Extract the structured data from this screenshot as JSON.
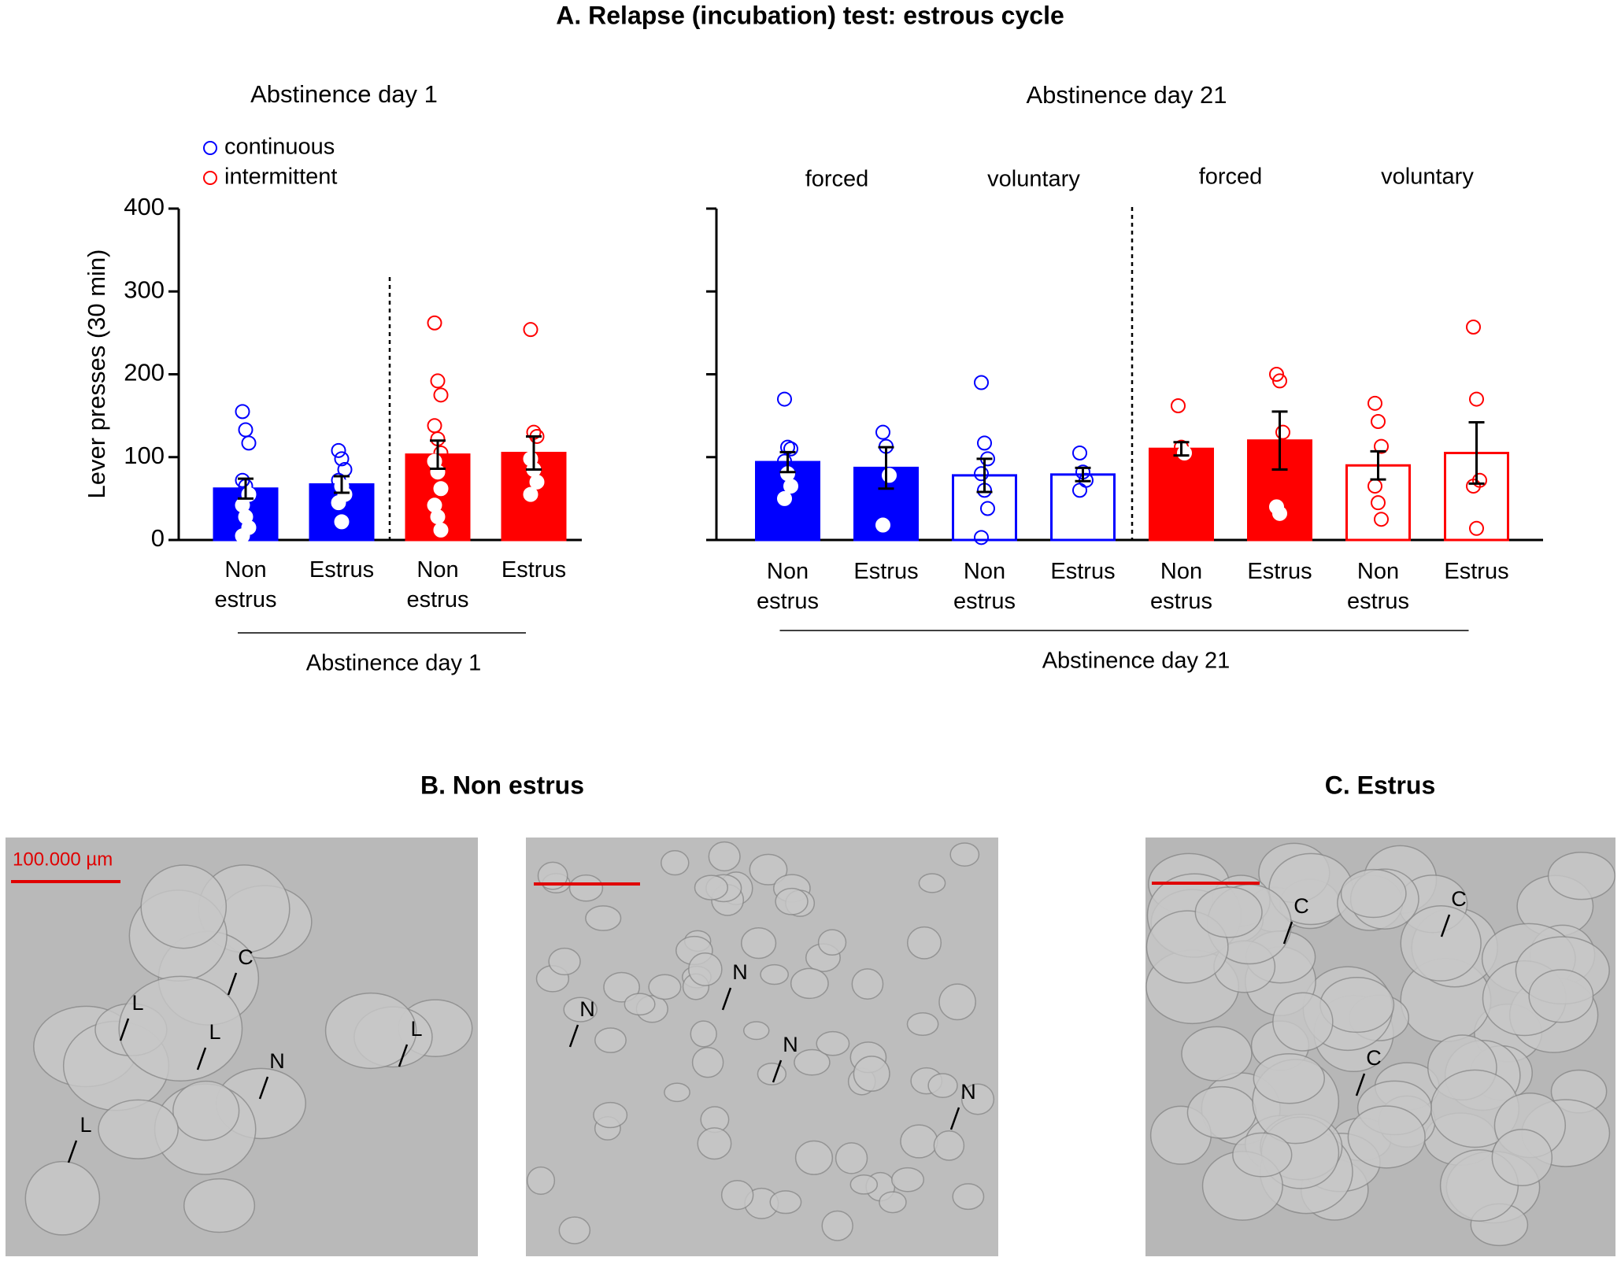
{
  "title": "A. Relapse (incubation) test: estrous cycle",
  "chart_data": [
    {
      "type": "bar",
      "title": "Abstinence day 1",
      "ylabel": "Lever presses (30 min)",
      "xlabel": "Abstinence day 1",
      "legend": [
        {
          "name": "continuous",
          "color": "#0000ff"
        },
        {
          "name": "intermittent",
          "color": "#ff0000"
        }
      ],
      "categories": [
        "Non estrus",
        "Estrus",
        "Non estrus",
        "Estrus"
      ],
      "values": [
        62,
        67,
        103,
        105
      ],
      "errors": [
        12,
        10,
        17,
        20
      ],
      "colors": [
        "#0000ff",
        "#0000ff",
        "#ff0000",
        "#ff0000"
      ],
      "filled": [
        true,
        true,
        true,
        true
      ],
      "points": [
        [
          155,
          133,
          117,
          72,
          65,
          55,
          42,
          28,
          15,
          5
        ],
        [
          108,
          98,
          85,
          72,
          65,
          55,
          45,
          22
        ],
        [
          262,
          192,
          175,
          138,
          122,
          105,
          95,
          82,
          62,
          42,
          28,
          12
        ],
        [
          254,
          130,
          125,
          98,
          85,
          70,
          55
        ]
      ],
      "ylim": [
        0,
        400
      ],
      "yticks": [
        0,
        100,
        200,
        300,
        400
      ],
      "ytick_labels": true
    },
    {
      "type": "bar",
      "title": "Abstinence day 21",
      "xlabel": "Abstinence day 21",
      "group_labels": [
        "forced",
        "voluntary",
        "forced",
        "voluntary"
      ],
      "categories": [
        "Non estrus",
        "Estrus",
        "Non estrus",
        "Estrus",
        "Non estrus",
        "Estrus",
        "Non estrus",
        "Estrus"
      ],
      "values": [
        94,
        87,
        78,
        79,
        110,
        120,
        90,
        105
      ],
      "errors": [
        12,
        25,
        20,
        8,
        8,
        35,
        17,
        37
      ],
      "colors": [
        "#0000ff",
        "#0000ff",
        "#0000ff",
        "#0000ff",
        "#ff0000",
        "#ff0000",
        "#ff0000",
        "#ff0000"
      ],
      "filled": [
        true,
        true,
        false,
        false,
        true,
        true,
        false,
        false
      ],
      "points": [
        [
          170,
          112,
          110,
          95,
          80,
          65,
          50
        ],
        [
          130,
          113,
          78,
          18
        ],
        [
          190,
          117,
          98,
          80,
          60,
          38,
          3
        ],
        [
          105,
          82,
          72,
          60
        ],
        [
          162,
          112,
          105
        ],
        [
          200,
          192,
          130,
          40,
          32
        ],
        [
          165,
          143,
          113,
          65,
          45,
          25
        ],
        [
          257,
          170,
          72,
          65,
          14
        ]
      ],
      "ylim": [
        0,
        400
      ],
      "yticks": [
        0,
        100,
        200,
        300,
        400
      ],
      "ytick_labels": false
    }
  ],
  "micrographs": {
    "titles": [
      "B. Non estrus",
      "C. Estrus"
    ],
    "scale_label": "100.000 µm",
    "annotations": [
      [
        "C",
        "L",
        "L",
        "N",
        "L",
        "L"
      ],
      [
        "N",
        "N",
        "N",
        "N"
      ],
      [
        "C",
        "C",
        "C"
      ]
    ]
  }
}
